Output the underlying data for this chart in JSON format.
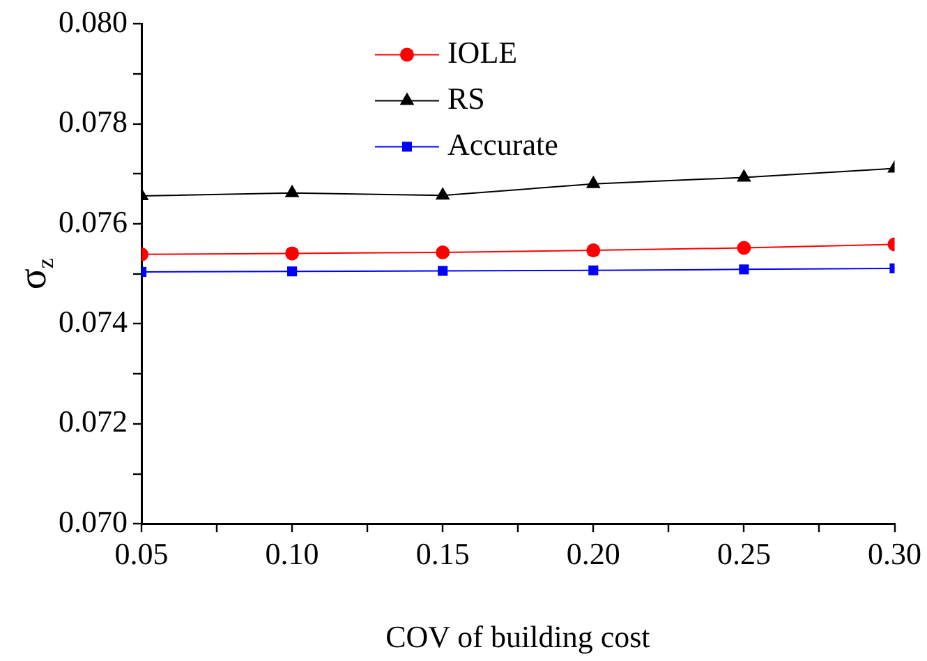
{
  "chart_data": {
    "type": "line",
    "xlabel": "COV of building cost",
    "ylabel": "σ$_{z}$",
    "x": [
      0.05,
      0.1,
      0.15,
      0.2,
      0.25,
      0.3
    ],
    "series": [
      {
        "name": "IOLE",
        "color": "#ff0000",
        "marker": "circle",
        "values": [
          0.07539,
          0.07541,
          0.07543,
          0.07547,
          0.07552,
          0.07559
        ]
      },
      {
        "name": "RS",
        "color": "#000000",
        "marker": "triangle",
        "values": [
          0.07656,
          0.07662,
          0.07657,
          0.0768,
          0.07693,
          0.07711
        ]
      },
      {
        "name": "Accurate",
        "color": "#0000ff",
        "marker": "square",
        "values": [
          0.07504,
          0.07505,
          0.07506,
          0.07507,
          0.07509,
          0.07511
        ]
      }
    ],
    "xlim": [
      0.05,
      0.3
    ],
    "xticks": [
      {
        "value": 0.05,
        "label": "0.05"
      },
      {
        "value": 0.075,
        "label": null
      },
      {
        "value": 0.1,
        "label": "0.10"
      },
      {
        "value": 0.125,
        "label": null
      },
      {
        "value": 0.15,
        "label": "0.15"
      },
      {
        "value": 0.175,
        "label": null
      },
      {
        "value": 0.2,
        "label": "0.20"
      },
      {
        "value": 0.225,
        "label": null
      },
      {
        "value": 0.25,
        "label": "0.25"
      },
      {
        "value": 0.275,
        "label": null
      },
      {
        "value": 0.3,
        "label": "0.30"
      }
    ],
    "ylim": [
      0.07,
      0.08
    ],
    "yticks": [
      {
        "value": 0.07,
        "label": "0.070"
      },
      {
        "value": 0.071,
        "label": null
      },
      {
        "value": 0.072,
        "label": "0.072"
      },
      {
        "value": 0.073,
        "label": null
      },
      {
        "value": 0.074,
        "label": "0.074"
      },
      {
        "value": 0.075,
        "label": null
      },
      {
        "value": 0.076,
        "label": "0.076"
      },
      {
        "value": 0.077,
        "label": null
      },
      {
        "value": 0.078,
        "label": "0.078"
      },
      {
        "value": 0.079,
        "label": null
      },
      {
        "value": 0.08,
        "label": "0.080"
      }
    ],
    "grid": false,
    "legend": "top",
    "line_style": "solid"
  }
}
